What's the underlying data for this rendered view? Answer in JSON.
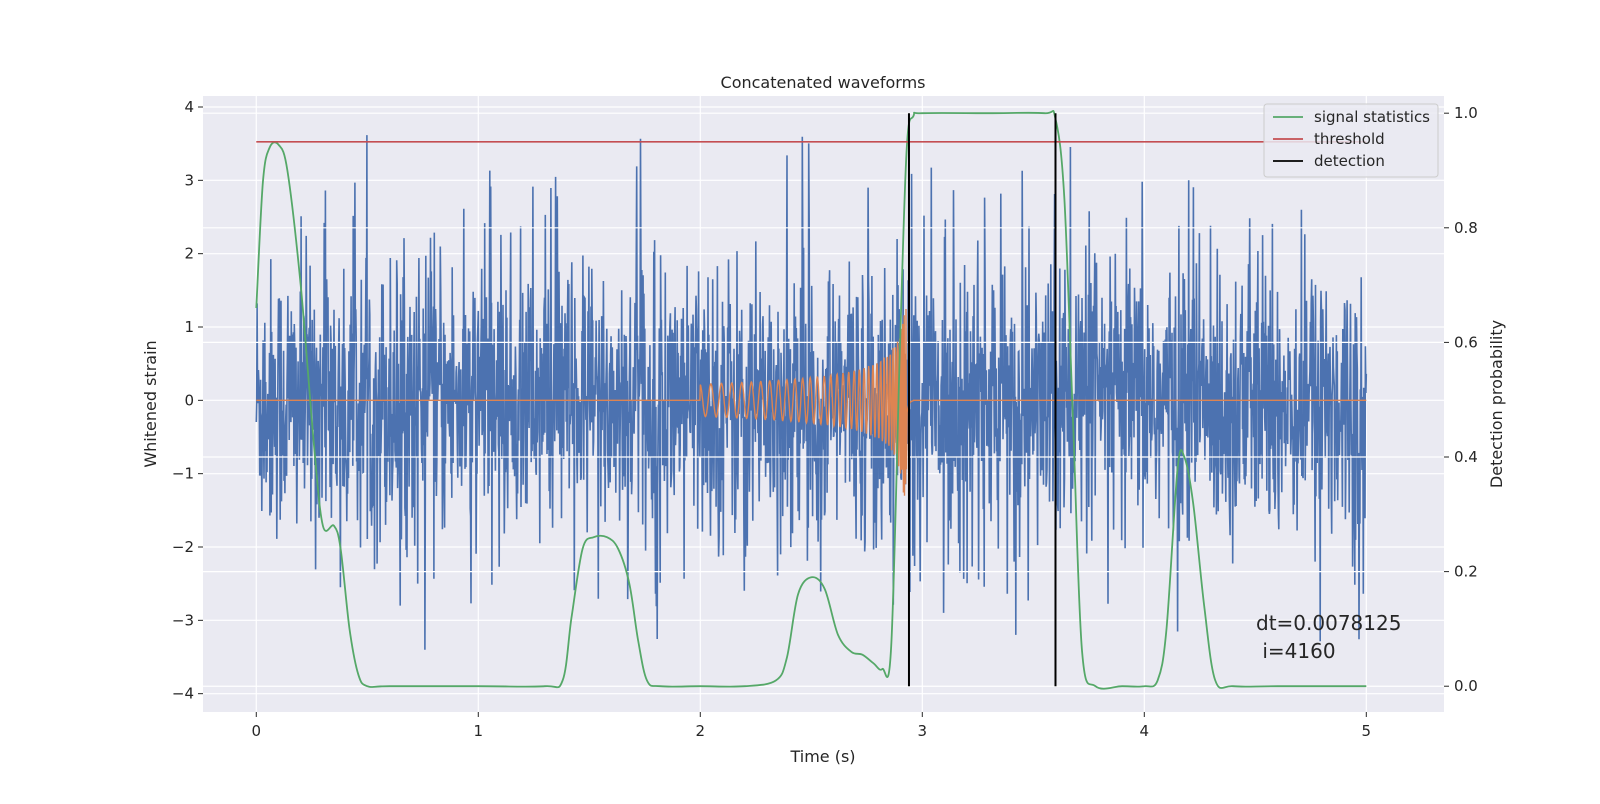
{
  "chart_data": {
    "type": "line",
    "title": "Concatenated waveforms",
    "xlabel": "Time (s)",
    "ylabel": "Whitened strain",
    "ylabel_right": "Detection probability",
    "xlim": [
      -0.24,
      5.35
    ],
    "ylim": [
      -4.25,
      4.15
    ],
    "ylim_right": [
      -0.045,
      1.03
    ],
    "x_ticks": [
      "0",
      "1",
      "2",
      "3",
      "4",
      "5"
    ],
    "y_ticks": [
      "−4",
      "−3",
      "−2",
      "−1",
      "0",
      "1",
      "2",
      "3",
      "4"
    ],
    "y_ticks_right": [
      "0.0",
      "0.2",
      "0.4",
      "0.6",
      "0.8",
      "1.0"
    ],
    "grid": true,
    "legend_position": "top-right",
    "annotation": {
      "line1": "dt=0.0078125",
      "line2": " i=4160"
    },
    "series": [
      {
        "name": "",
        "axis": "left",
        "kind": "noise",
        "color": "#4c72b0",
        "x_range": [
          0,
          5
        ],
        "core_amplitude": 0.75,
        "spike_max": 3.8,
        "spike_min": -3.4
      },
      {
        "name": "",
        "axis": "left",
        "kind": "chirp",
        "color": "#dd8452",
        "x_range": [
          0,
          5
        ],
        "chirp_start": 2.0,
        "merger": 2.93,
        "start_amplitude": 0.22,
        "peak_amplitude": 1.45,
        "peak_min": -1.4
      },
      {
        "name": "signal statistics",
        "axis": "right",
        "color": "#55a868",
        "x": [
          0.0,
          0.03,
          0.06,
          0.1,
          0.14,
          0.2,
          0.26,
          0.3,
          0.35,
          0.38,
          0.42,
          0.46,
          0.5,
          0.6,
          1.0,
          1.3,
          1.38,
          1.42,
          1.47,
          1.52,
          1.58,
          1.63,
          1.68,
          1.72,
          1.76,
          1.82,
          2.0,
          2.2,
          2.34,
          2.39,
          2.44,
          2.5,
          2.56,
          2.62,
          2.68,
          2.73,
          2.78,
          2.82,
          2.86,
          2.9,
          2.93,
          2.96,
          3.0,
          3.3,
          3.55,
          3.6,
          3.64,
          3.68,
          3.72,
          3.78,
          3.9,
          4.0,
          4.06,
          4.1,
          4.15,
          4.18,
          4.22,
          4.27,
          4.32,
          4.4,
          4.6,
          5.0
        ],
        "values": [
          0.66,
          0.88,
          0.94,
          0.945,
          0.9,
          0.7,
          0.42,
          0.28,
          0.28,
          0.24,
          0.1,
          0.02,
          0.0,
          0.0,
          0.0,
          0.0,
          0.01,
          0.12,
          0.24,
          0.26,
          0.26,
          0.24,
          0.18,
          0.08,
          0.01,
          0.0,
          0.0,
          0.0,
          0.01,
          0.05,
          0.16,
          0.19,
          0.17,
          0.09,
          0.06,
          0.055,
          0.04,
          0.03,
          0.07,
          0.6,
          0.94,
          0.995,
          1.0,
          1.0,
          1.0,
          0.99,
          0.85,
          0.45,
          0.06,
          0.0,
          0.0,
          0.0,
          0.01,
          0.1,
          0.38,
          0.4,
          0.32,
          0.14,
          0.01,
          0.0,
          0.0,
          0.0
        ]
      },
      {
        "name": "threshold",
        "axis": "right",
        "color": "#c44e52",
        "x": [
          0,
          5
        ],
        "values": [
          0.95,
          0.95
        ]
      },
      {
        "name": "detection",
        "axis": "right",
        "color": "#000000",
        "x": [
          2.94,
          3.6
        ],
        "values": [
          1.0,
          1.0
        ]
      }
    ]
  }
}
